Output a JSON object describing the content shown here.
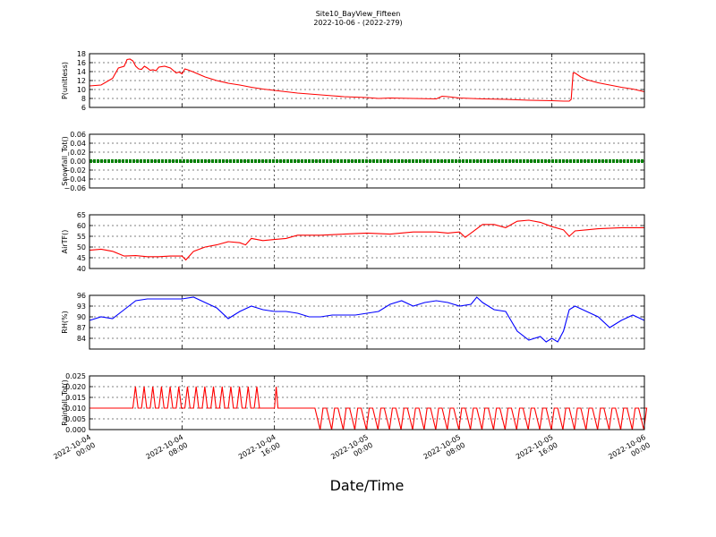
{
  "title": "Site10_BayView_Fifteen",
  "subtitle": "2022-10-06 - (2022-279)",
  "xlabel": "Date/Time",
  "chart_data": {
    "type": "line",
    "x_range": [
      "2022-10-04 00:00",
      "2022-10-06 00:00"
    ],
    "x_ticks": [
      {
        "time": "2022-10-04 00:00",
        "label": [
          "2022-10-04",
          "00:00"
        ]
      },
      {
        "time": "2022-10-04 08:00",
        "label": [
          "2022-10-04",
          "08:00"
        ]
      },
      {
        "time": "2022-10-04 16:00",
        "label": [
          "2022-10-04",
          "16:00"
        ]
      },
      {
        "time": "2022-10-05 00:00",
        "label": [
          "2022-10-05",
          "00:00"
        ]
      },
      {
        "time": "2022-10-05 08:00",
        "label": [
          "2022-10-05",
          "08:00"
        ]
      },
      {
        "time": "2022-10-05 16:00",
        "label": [
          "2022-10-05",
          "16:00"
        ]
      },
      {
        "time": "2022-10-06 00:00",
        "label": [
          "2022-10-06",
          "00:00"
        ]
      }
    ],
    "grid": true,
    "panels": [
      {
        "ylabel": "P(unitless)",
        "color": "#ff0000",
        "ylim": [
          6,
          18
        ],
        "yticks": [
          "6",
          "8",
          "10",
          "12",
          "14",
          "16",
          "18"
        ],
        "series": {
          "x": [
            "2022-10-04 00:00",
            "2022-10-04 01:00",
            "2022-10-04 02:00",
            "2022-10-04 02:30",
            "2022-10-04 03:00",
            "2022-10-04 03:15",
            "2022-10-04 03:30",
            "2022-10-04 03:45",
            "2022-10-04 04:00",
            "2022-10-04 04:15",
            "2022-10-04 04:30",
            "2022-10-04 04:45",
            "2022-10-04 05:00",
            "2022-10-04 05:15",
            "2022-10-04 05:30",
            "2022-10-04 05:45",
            "2022-10-04 06:00",
            "2022-10-04 06:30",
            "2022-10-04 07:00",
            "2022-10-04 07:30",
            "2022-10-04 07:45",
            "2022-10-04 08:00",
            "2022-10-04 08:15",
            "2022-10-04 08:30",
            "2022-10-04 09:00",
            "2022-10-04 10:00",
            "2022-10-04 11:00",
            "2022-10-04 12:00",
            "2022-10-04 13:00",
            "2022-10-04 14:00",
            "2022-10-04 15:00",
            "2022-10-04 16:00",
            "2022-10-04 17:00",
            "2022-10-04 18:00",
            "2022-10-04 19:00",
            "2022-10-04 20:00",
            "2022-10-04 21:00",
            "2022-10-04 22:00",
            "2022-10-05 00:00",
            "2022-10-05 01:00",
            "2022-10-05 02:00",
            "2022-10-05 04:00",
            "2022-10-05 06:00",
            "2022-10-05 06:30",
            "2022-10-05 07:00",
            "2022-10-05 08:00",
            "2022-10-05 10:00",
            "2022-10-05 12:00",
            "2022-10-05 14:00",
            "2022-10-05 16:00",
            "2022-10-05 17:00",
            "2022-10-05 17:30",
            "2022-10-05 17:40",
            "2022-10-05 17:50",
            "2022-10-05 18:00",
            "2022-10-05 18:30",
            "2022-10-05 19:00",
            "2022-10-05 20:00",
            "2022-10-05 21:00",
            "2022-10-05 22:00",
            "2022-10-05 23:00",
            "2022-10-06 00:00"
          ],
          "y": [
            10.8,
            11.0,
            12.5,
            14.8,
            15.2,
            16.7,
            16.8,
            16.4,
            15.2,
            14.6,
            14.5,
            15.2,
            14.8,
            14.3,
            14.4,
            14.2,
            15.0,
            15.2,
            14.8,
            13.7,
            13.9,
            13.5,
            14.6,
            14.4,
            13.9,
            12.8,
            12.0,
            11.4,
            11.0,
            10.5,
            10.1,
            9.8,
            9.5,
            9.2,
            9.0,
            8.8,
            8.6,
            8.4,
            8.2,
            8.0,
            8.1,
            8.0,
            7.9,
            8.5,
            8.4,
            8.1,
            7.9,
            7.8,
            7.6,
            7.5,
            7.4,
            7.4,
            7.8,
            13.7,
            13.7,
            12.8,
            12.2,
            11.5,
            11.0,
            10.5,
            10.1,
            9.5
          ]
        }
      },
      {
        "ylabel": "Snowfall_Tot()",
        "color": "#008000",
        "ylim": [
          -0.06,
          0.06
        ],
        "yticks": [
          "−0.06",
          "−0.04",
          "−0.02",
          "0.00",
          "0.02",
          "0.04",
          "0.06"
        ],
        "series": {
          "x": [
            "2022-10-04 00:00",
            "2022-10-06 00:00"
          ],
          "y": [
            0.0,
            0.0
          ]
        }
      },
      {
        "ylabel": "AirTF()",
        "color": "#ff0000",
        "ylim": [
          40,
          65
        ],
        "yticks": [
          "40",
          "45",
          "50",
          "55",
          "60",
          "65"
        ],
        "series": {
          "x": [
            "2022-10-04 00:00",
            "2022-10-04 01:00",
            "2022-10-04 02:00",
            "2022-10-04 03:00",
            "2022-10-04 04:00",
            "2022-10-04 05:00",
            "2022-10-04 06:00",
            "2022-10-04 07:00",
            "2022-10-04 08:00",
            "2022-10-04 08:20",
            "2022-10-04 08:40",
            "2022-10-04 09:00",
            "2022-10-04 10:00",
            "2022-10-04 11:00",
            "2022-10-04 12:00",
            "2022-10-04 13:00",
            "2022-10-04 13:30",
            "2022-10-04 14:00",
            "2022-10-04 15:00",
            "2022-10-04 16:00",
            "2022-10-04 17:00",
            "2022-10-04 18:00",
            "2022-10-04 19:00",
            "2022-10-04 20:00",
            "2022-10-04 22:00",
            "2022-10-05 00:00",
            "2022-10-05 02:00",
            "2022-10-05 04:00",
            "2022-10-05 06:00",
            "2022-10-05 07:00",
            "2022-10-05 08:00",
            "2022-10-05 08:30",
            "2022-10-05 09:00",
            "2022-10-05 10:00",
            "2022-10-05 11:00",
            "2022-10-05 12:00",
            "2022-10-05 13:00",
            "2022-10-05 14:00",
            "2022-10-05 15:00",
            "2022-10-05 16:00",
            "2022-10-05 17:00",
            "2022-10-05 17:30",
            "2022-10-05 18:00",
            "2022-10-05 19:00",
            "2022-10-05 20:00",
            "2022-10-05 22:00",
            "2022-10-06 00:00"
          ],
          "y": [
            48.5,
            49.0,
            48.0,
            45.8,
            46.0,
            45.5,
            45.5,
            45.8,
            45.8,
            44.0,
            46.0,
            48.0,
            50.0,
            51.0,
            52.5,
            52.0,
            51.0,
            54.0,
            53.0,
            53.5,
            54.0,
            55.5,
            55.5,
            55.5,
            56.0,
            56.5,
            56.0,
            57.0,
            57.0,
            56.5,
            57.0,
            54.5,
            56.5,
            60.5,
            60.5,
            59.0,
            62.0,
            62.5,
            61.5,
            59.5,
            58.0,
            55.0,
            57.5,
            58.0,
            58.5,
            59.0,
            59.0
          ]
        }
      },
      {
        "ylabel": "RH(%)",
        "color": "#0000ff",
        "ylim": [
          81,
          96
        ],
        "yticks": [
          "84",
          "87",
          "90",
          "93",
          "96"
        ],
        "series": {
          "x": [
            "2022-10-04 00:00",
            "2022-10-04 01:00",
            "2022-10-04 02:00",
            "2022-10-04 03:00",
            "2022-10-04 04:00",
            "2022-10-04 05:00",
            "2022-10-04 06:00",
            "2022-10-04 07:00",
            "2022-10-04 08:00",
            "2022-10-04 09:00",
            "2022-10-04 10:00",
            "2022-10-04 11:00",
            "2022-10-04 12:00",
            "2022-10-04 13:00",
            "2022-10-04 14:00",
            "2022-10-04 15:00",
            "2022-10-04 16:00",
            "2022-10-04 17:00",
            "2022-10-04 18:00",
            "2022-10-04 19:00",
            "2022-10-04 20:00",
            "2022-10-04 21:00",
            "2022-10-04 22:00",
            "2022-10-04 23:00",
            "2022-10-05 00:00",
            "2022-10-05 01:00",
            "2022-10-05 02:00",
            "2022-10-05 03:00",
            "2022-10-05 04:00",
            "2022-10-05 05:00",
            "2022-10-05 06:00",
            "2022-10-05 07:00",
            "2022-10-05 08:00",
            "2022-10-05 09:00",
            "2022-10-05 09:30",
            "2022-10-05 10:00",
            "2022-10-05 11:00",
            "2022-10-05 12:00",
            "2022-10-05 13:00",
            "2022-10-05 14:00",
            "2022-10-05 15:00",
            "2022-10-05 15:30",
            "2022-10-05 16:00",
            "2022-10-05 16:30",
            "2022-10-05 17:00",
            "2022-10-05 17:30",
            "2022-10-05 18:00",
            "2022-10-05 19:00",
            "2022-10-05 20:00",
            "2022-10-05 21:00",
            "2022-10-05 22:00",
            "2022-10-05 23:00",
            "2022-10-06 00:00"
          ],
          "y": [
            89.0,
            90.0,
            89.5,
            92.0,
            94.5,
            95.0,
            95.0,
            95.0,
            95.0,
            95.5,
            94.0,
            92.5,
            89.5,
            91.5,
            93.0,
            92.0,
            91.5,
            91.5,
            91.0,
            90.0,
            90.0,
            90.5,
            90.5,
            90.5,
            91.0,
            91.5,
            93.5,
            94.5,
            93.0,
            94.0,
            94.5,
            94.0,
            93.0,
            93.5,
            95.5,
            94.0,
            92.0,
            91.5,
            86.0,
            83.5,
            84.5,
            83.0,
            84.0,
            83.0,
            86.0,
            92.0,
            93.0,
            91.5,
            90.0,
            87.0,
            89.0,
            90.5,
            89.0
          ]
        }
      },
      {
        "ylabel": "Rainfall_Tot()",
        "color": "#ff0000",
        "ylim": [
          0.0,
          0.025
        ],
        "yticks": [
          "0.000",
          "0.005",
          "0.010",
          "0.015",
          "0.020",
          "0.025"
        ],
        "series": {
          "baseline": 0.01,
          "segments": [
            {
              "from": "2022-10-04 00:00",
              "to": "2022-10-04 03:45",
              "value": 0.01
            },
            {
              "from": "2022-10-04 03:45",
              "to": "2022-10-04 14:30",
              "value": 0.01,
              "spike_to": 0.02,
              "spike_period_min": 45
            },
            {
              "from": "2022-10-04 14:30",
              "to": "2022-10-04 16:00",
              "value": 0.01
            },
            {
              "from": "2022-10-04 16:00",
              "to": "2022-10-04 16:30",
              "value": 0.01,
              "spike_to": 0.02,
              "spike_period_min": 30
            },
            {
              "from": "2022-10-04 16:30",
              "to": "2022-10-04 19:30",
              "value": 0.01
            },
            {
              "from": "2022-10-04 19:30",
              "to": "2022-10-06 00:00",
              "value": 0.01,
              "dip_to": 0.0,
              "dip_period_min": 60
            }
          ]
        }
      }
    ]
  }
}
